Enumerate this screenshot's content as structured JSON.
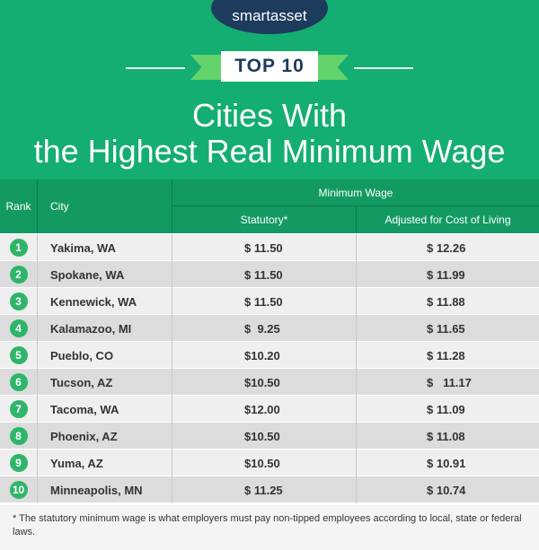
{
  "header": {
    "logo": "smartasset",
    "banner": "TOP 10",
    "title_lines": [
      "Cities With",
      "the Highest Real Minimum Wage"
    ]
  },
  "table": {
    "columns": {
      "rank": "Rank",
      "city": "City",
      "group": "Minimum Wage",
      "statutory": "Statutory*",
      "adjusted": "Adjusted for Cost of Living"
    },
    "rows": [
      [
        "1",
        "Yakima, WA",
        "$ 11.50",
        "$ 12.26"
      ],
      [
        "2",
        "Spokane, WA",
        "$ 11.50",
        "$ 11.99"
      ],
      [
        "3",
        "Kennewick, WA",
        "$ 11.50",
        "$ 11.88"
      ],
      [
        "4",
        "Kalamazoo, MI",
        "$  9.25",
        "$ 11.65"
      ],
      [
        "5",
        "Pueblo, CO",
        "$10.20",
        "$ 11.28"
      ],
      [
        "6",
        "Tucson, AZ",
        "$10.50",
        "$   11.17"
      ],
      [
        "7",
        "Tacoma, WA",
        "$12.00",
        "$ 11.09"
      ],
      [
        "8",
        "Phoenix, AZ",
        "$10.50",
        "$ 11.08"
      ],
      [
        "9",
        "Yuma, AZ",
        "$10.50",
        "$ 10.91"
      ],
      [
        "10",
        "Minneapolis, MN",
        "$ 11.25",
        "$ 10.74"
      ]
    ]
  },
  "footnote": "* The statutory minimum wage is what employers must pay non-tipped employees according to local, state or federal laws."
}
